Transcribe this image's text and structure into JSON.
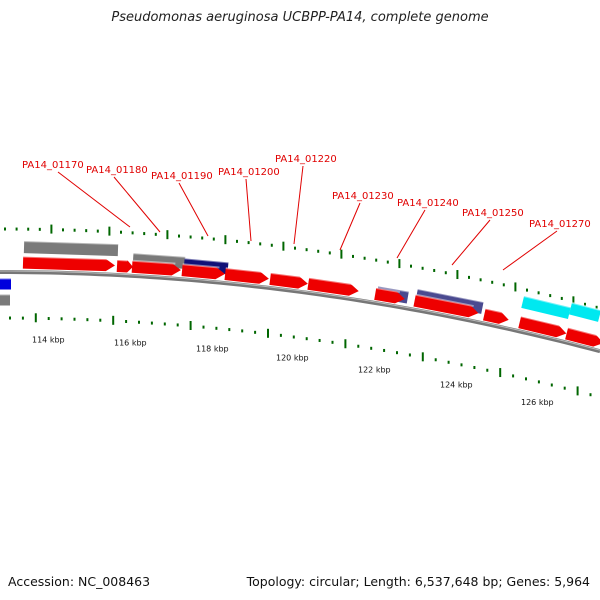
{
  "title": "Pseudomonas aeruginosa UCBPP-PA14, complete genome",
  "footer": {
    "accession": "Accession: NC_008463",
    "summary": "Topology: circular; Length: 6,537,648 bp; Genes: 5,964"
  },
  "colors": {
    "forward_cds": "#ee0000",
    "reverse_gray": "#7a7a7a",
    "dark_blue": "#111177",
    "slate_blue": "#4a4a90",
    "blue": "#0000dd",
    "cyan": "#00e8f0",
    "tick_green": "#006600",
    "backbone": "#777777",
    "label_red": "#e00000"
  },
  "locus_labels": [
    "PA14_01170",
    "PA14_01180",
    "PA14_01190",
    "PA14_01200",
    "PA14_01220",
    "PA14_01230",
    "PA14_01240",
    "PA14_01250",
    "PA14_01270"
  ],
  "kbp_labels": [
    "114 kbp",
    "116 kbp",
    "118 kbp",
    "120 kbp",
    "122 kbp",
    "124 kbp",
    "126 kbp"
  ]
}
